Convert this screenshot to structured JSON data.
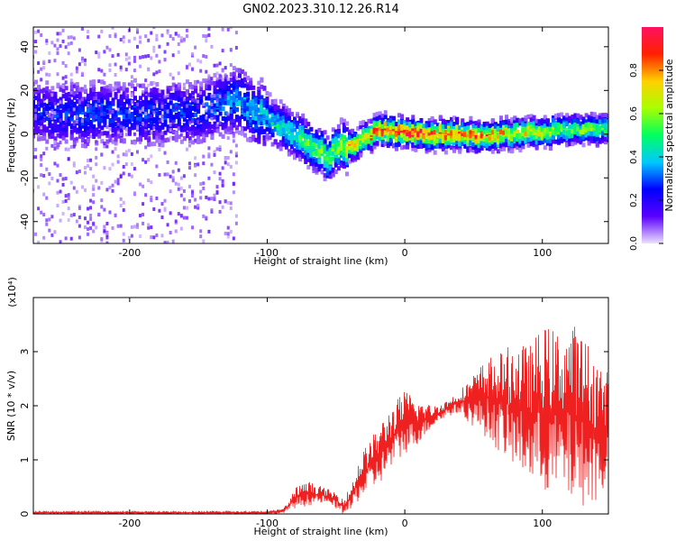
{
  "title": "GN02.2023.310.12.26.R14",
  "chart_data": [
    {
      "type": "heatmap",
      "title": "GN02.2023.310.12.26.R14",
      "xlabel": "Height of straight line (km)",
      "ylabel": "Frequency (Hz)",
      "xlim": [
        -270,
        148
      ],
      "ylim": [
        -50,
        49
      ],
      "x_ticks": [
        -200,
        -100,
        0,
        100
      ],
      "y_ticks": [
        -40,
        -20,
        0,
        20,
        40
      ],
      "colorbar": {
        "label": "Normalized spectral amplitude",
        "range": [
          0.0,
          1.0
        ],
        "ticks": [
          0.0,
          0.2,
          0.4,
          0.6,
          0.8
        ],
        "colors": [
          "#ece0ff",
          "#5a00ff",
          "#0000ff",
          "#00c8ff",
          "#00ff60",
          "#a8ff00",
          "#ffd000",
          "#ff2000",
          "#ff1060"
        ]
      },
      "ridge": {
        "x": [
          -270,
          -250,
          -230,
          -210,
          -190,
          -170,
          -150,
          -130,
          -120,
          -110,
          -100,
          -90,
          -80,
          -70,
          -60,
          -55,
          -50,
          -40,
          -30,
          -20,
          -10,
          0,
          20,
          40,
          60,
          80,
          100,
          120,
          140,
          148
        ],
        "y": [
          10,
          9,
          9,
          10,
          9,
          10,
          10,
          14,
          16,
          10,
          8,
          3,
          0,
          -4,
          -8,
          -12,
          -6,
          -6,
          -3,
          2,
          1,
          1,
          0,
          0,
          -1,
          0,
          1,
          2,
          2,
          2
        ],
        "peak_amplitude": [
          0.25,
          0.3,
          0.3,
          0.3,
          0.3,
          0.3,
          0.3,
          0.35,
          0.4,
          0.4,
          0.45,
          0.5,
          0.5,
          0.55,
          0.6,
          0.6,
          0.65,
          0.75,
          0.8,
          0.9,
          0.95,
          1.0,
          0.95,
          0.9,
          0.85,
          0.75,
          0.7,
          0.65,
          0.6,
          0.6
        ]
      },
      "grid": false
    },
    {
      "type": "line",
      "xlabel": "Height of straight line (km)",
      "ylabel": "SNR (10 * v/v)",
      "y_multiplier_label": "(x10⁴)",
      "xlim": [
        -270,
        148
      ],
      "ylim": [
        0,
        4.0
      ],
      "x_ticks": [
        -200,
        -100,
        0,
        100
      ],
      "y_ticks": [
        0,
        1,
        2,
        3
      ],
      "series": [
        {
          "color": "#ee2020",
          "envelope_x": [
            -270,
            -200,
            -150,
            -100,
            -90,
            -85,
            -80,
            -70,
            -60,
            -50,
            -45,
            -40,
            -35,
            -30,
            -20,
            -10,
            0,
            10,
            20,
            30,
            40,
            50,
            60,
            70,
            80,
            90,
            100,
            110,
            120,
            130,
            140,
            148
          ],
          "envelope_low": [
            0,
            0,
            0,
            0,
            0,
            0.05,
            0.1,
            0.15,
            0.2,
            0.1,
            0,
            0,
            0.2,
            0.3,
            0.5,
            0.8,
            1.1,
            1.3,
            1.6,
            1.8,
            1.85,
            1.6,
            1.4,
            1.1,
            0.8,
            0.6,
            0.4,
            0.3,
            0.2,
            0.15,
            0.2,
            0.5
          ],
          "envelope_high": [
            0.05,
            0.05,
            0.05,
            0.05,
            0.1,
            0.2,
            0.5,
            0.6,
            0.5,
            0.4,
            0.3,
            0.5,
            0.9,
            1.2,
            1.6,
            2.0,
            2.3,
            2.1,
            2.0,
            2.1,
            2.3,
            2.6,
            2.9,
            3.0,
            3.2,
            3.1,
            3.5,
            3.4,
            3.6,
            3.3,
            2.9,
            2.6
          ]
        }
      ],
      "grid": false
    }
  ]
}
